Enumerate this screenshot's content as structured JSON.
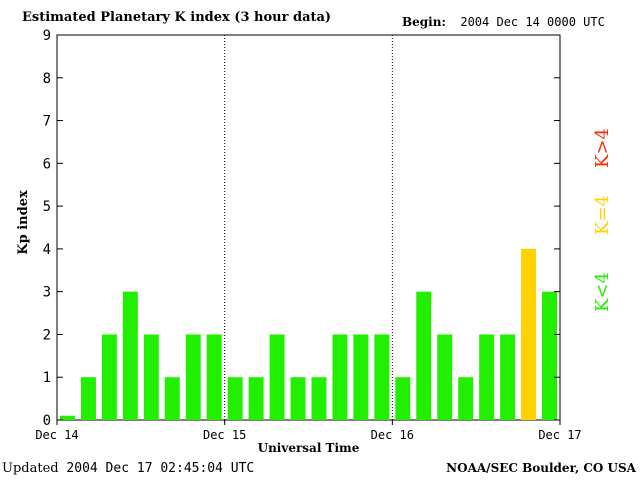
{
  "header": {
    "title": "Estimated Planetary K index (3 hour data)",
    "begin_label": "Begin:",
    "begin_value": "2004 Dec 14 0000 UTC"
  },
  "footer": {
    "updated_label": "Updated",
    "updated_value": "2004 Dec 17 02:45:04 UTC",
    "credit": "NOAA/SEC Boulder, CO USA"
  },
  "legend": {
    "high": {
      "label": "K>4",
      "color": "#ff2a00"
    },
    "equal": {
      "label": "K=4",
      "color": "#ffd200"
    },
    "low": {
      "label": "K<4",
      "color": "#22ee00"
    }
  },
  "chart_data": {
    "type": "bar",
    "xlabel": "Universal Time",
    "ylabel": "Kp index",
    "ylim": [
      0,
      9
    ],
    "yticks": [
      0,
      1,
      2,
      3,
      4,
      5,
      6,
      7,
      8,
      9
    ],
    "day_labels": [
      "Dec 14",
      "Dec 15",
      "Dec 16",
      "Dec 17"
    ],
    "bars_per_day": 8,
    "values": [
      0.1,
      1,
      2,
      3,
      2,
      1,
      2,
      2,
      1,
      1,
      2,
      1,
      1,
      2,
      2,
      2,
      1,
      3,
      2,
      1,
      2,
      2,
      4,
      3
    ],
    "colors": {
      "below4": "#22ee00",
      "equal4": "#ffd200",
      "above4": "#ff2a00"
    },
    "grid": "vertical dotted day separators"
  }
}
